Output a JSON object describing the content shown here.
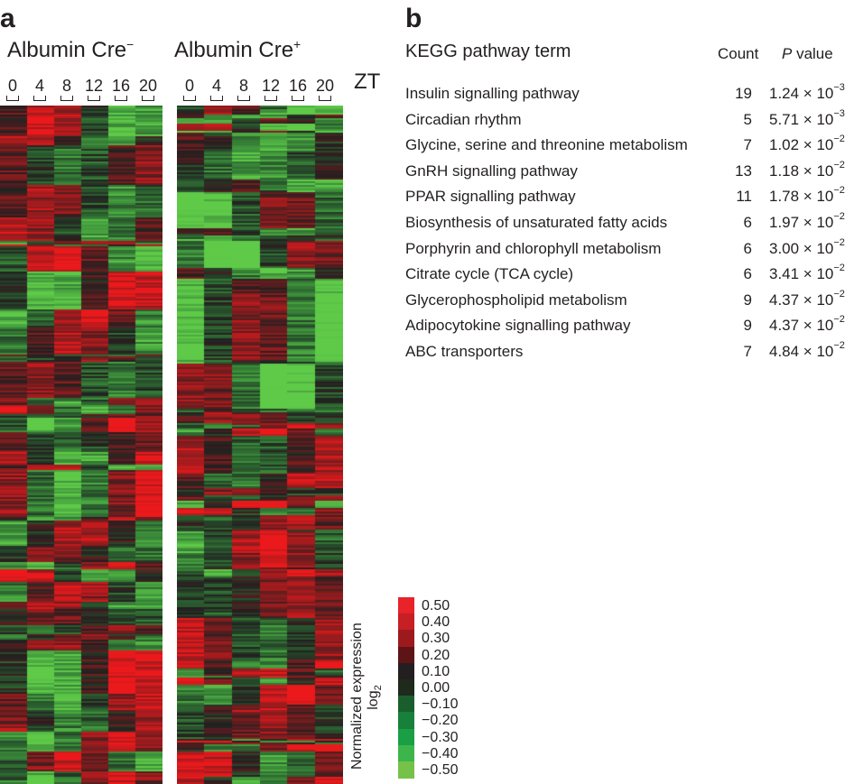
{
  "chart_data": [
    {
      "type": "heatmap",
      "panel": "a",
      "conditions": [
        {
          "name": "Albumin Cre",
          "superscript": "−"
        },
        {
          "name": "Albumin Cre",
          "superscript": "+"
        }
      ],
      "x_ticks": [
        "0",
        "4",
        "8",
        "12",
        "16",
        "20"
      ],
      "x_axis_label": "ZT",
      "colorbar": {
        "title_line1": "Normalized expression",
        "title_line2": "log",
        "title_subscript": "2",
        "ticks": [
          "0.50",
          "0.40",
          "0.30",
          "0.20",
          "0.10",
          "0.00",
          "−0.10",
          "−0.20",
          "−0.30",
          "−0.40",
          "−0.50"
        ],
        "colors": [
          "#e8232a",
          "#c61f24",
          "#9c1a1e",
          "#5e1416",
          "#231f20",
          "#1e2a1c",
          "#1b5e2d",
          "#17803a",
          "#1a9f45",
          "#3cb64c",
          "#76c249"
        ]
      }
    },
    {
      "type": "table",
      "panel": "b",
      "columns": [
        "KEGG pathway term",
        "Count",
        "P value"
      ],
      "p_prefix": "P",
      "p_suffix": " value",
      "rows": [
        {
          "term": "Insulin signalling pathway",
          "count": 19,
          "p_mantissa": "1.24",
          "p_exp": "−3"
        },
        {
          "term": "Circadian rhythm",
          "count": 5,
          "p_mantissa": "5.71",
          "p_exp": "−3"
        },
        {
          "term": "Glycine, serine and threonine metabolism",
          "count": 7,
          "p_mantissa": "1.02",
          "p_exp": "−2"
        },
        {
          "term": "GnRH signalling pathway",
          "count": 13,
          "p_mantissa": "1.18",
          "p_exp": "−2"
        },
        {
          "term": "PPAR signalling pathway",
          "count": 11,
          "p_mantissa": "1.78",
          "p_exp": "−2"
        },
        {
          "term": "Biosynthesis of unsaturated fatty acids",
          "count": 6,
          "p_mantissa": "1.97",
          "p_exp": "−2"
        },
        {
          "term": "Porphyrin and chlorophyll metabolism",
          "count": 6,
          "p_mantissa": "3.00",
          "p_exp": "−2"
        },
        {
          "term": "Citrate cycle (TCA cycle)",
          "count": 6,
          "p_mantissa": "3.41",
          "p_exp": "−2"
        },
        {
          "term": "Glycerophospholipid metabolism",
          "count": 9,
          "p_mantissa": "4.37",
          "p_exp": "−2"
        },
        {
          "term": "Adipocytokine signalling pathway",
          "count": 9,
          "p_mantissa": "4.37",
          "p_exp": "−2"
        },
        {
          "term": "ABC transporters",
          "count": 7,
          "p_mantissa": "4.84",
          "p_exp": "−2"
        }
      ],
      "times_symbol": "×",
      "ten": "10"
    }
  ],
  "panels": {
    "a": "a",
    "b": "b"
  }
}
